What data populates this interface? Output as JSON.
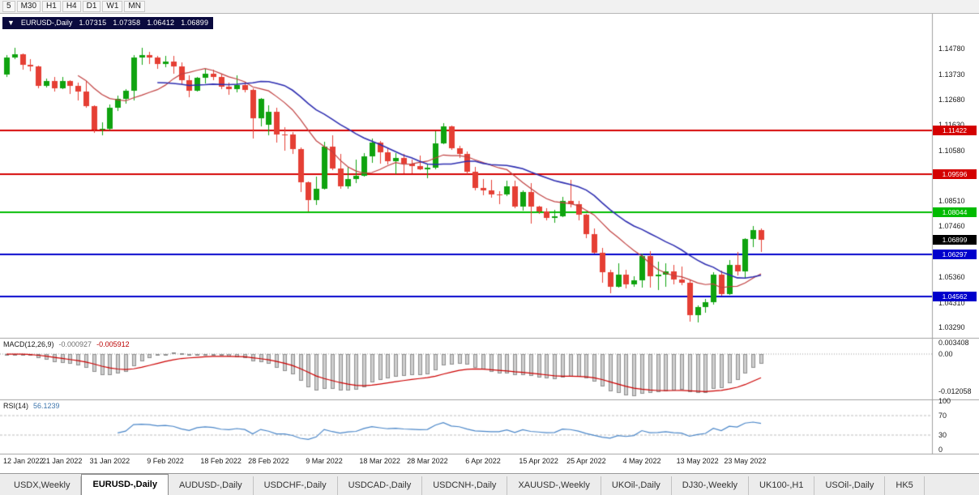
{
  "toolbar": {
    "timeframes": [
      "5",
      "M30",
      "H1",
      "H4",
      "D1",
      "W1",
      "MN"
    ]
  },
  "header": {
    "collapse_icon": "▼",
    "symbol": "EURUSD-,Daily",
    "open": "1.07315",
    "high": "1.07358",
    "low": "1.06412",
    "close": "1.06899"
  },
  "price_axis": {
    "labels": [
      "1.14780",
      "1.13730",
      "1.12680",
      "1.11630",
      "1.10580",
      "1.08510",
      "1.07460",
      "1.05360",
      "1.04310",
      "1.03290"
    ]
  },
  "levels": [
    {
      "value": 1.11422,
      "label": "1.11422",
      "color": "#d40000"
    },
    {
      "value": 1.09596,
      "label": "1.09596",
      "color": "#d40000"
    },
    {
      "value": 1.08044,
      "label": "1.08044",
      "color": "#00bb00"
    },
    {
      "value": 1.06297,
      "label": "1.06297",
      "color": "#0000cc"
    },
    {
      "value": 1.04562,
      "label": "1.04562",
      "color": "#0000cc"
    }
  ],
  "current_price": {
    "value": 1.06899,
    "label": "1.06899",
    "color": "#000000"
  },
  "macd": {
    "label": "MACD(12,26,9)",
    "main_value": "-0.000927",
    "signal_value": "-0.005912",
    "axis_max_label": "0.003408",
    "axis_zero_label": "0.00",
    "axis_min_label": "-0.012058",
    "axis_max": 0.003408,
    "axis_min": -0.012058
  },
  "rsi": {
    "label": "RSI(14)",
    "value": "56.1239",
    "axis_labels": [
      100,
      70,
      30,
      0
    ],
    "guide_levels": [
      70,
      30
    ]
  },
  "xaxis": {
    "labels": [
      "12 Jan 2022",
      "21 Jan 2022",
      "31 Jan 2022",
      "9 Feb 2022",
      "18 Feb 2022",
      "28 Feb 2022",
      "9 Mar 2022",
      "18 Mar 2022",
      "28 Mar 2022",
      "6 Apr 2022",
      "15 Apr 2022",
      "25 Apr 2022",
      "4 May 2022",
      "13 May 2022",
      "23 May 2022"
    ]
  },
  "tabs": [
    {
      "label": "USDX,Weekly",
      "active": false
    },
    {
      "label": "EURUSD-,Daily",
      "active": true
    },
    {
      "label": "AUDUSD-,Daily",
      "active": false
    },
    {
      "label": "USDCHF-,Daily",
      "active": false
    },
    {
      "label": "USDCAD-,Daily",
      "active": false
    },
    {
      "label": "USDCNH-,Daily",
      "active": false
    },
    {
      "label": "XAUUSD-,Weekly",
      "active": false
    },
    {
      "label": "UKOil-,Daily",
      "active": false
    },
    {
      "label": "DJ30-,Weekly",
      "active": false
    },
    {
      "label": "UK100-,H1",
      "active": false
    },
    {
      "label": "USOil-,Daily",
      "active": false
    },
    {
      "label": "HK5",
      "active": false
    }
  ],
  "colors": {
    "bull": "#0fa30f",
    "bear": "#e53f34",
    "ma_fast": "#c04040",
    "ma_slow": "#2d2db0",
    "macd_hist_fill": "#cfcfcf",
    "macd_hist_stroke": "#8e8e8e",
    "macd_signal": "#cc0000",
    "macd_zero": "#999999",
    "rsi_line": "#4a86c8",
    "rsi_guide": "#bdbdbd",
    "separator": "#a0a0a0"
  },
  "chart_data": {
    "type": "candlestick",
    "symbol": "EURUSD-",
    "timeframe": "Daily",
    "columns": [
      "date",
      "open",
      "high",
      "low",
      "close"
    ],
    "candles": [
      [
        "12 Jan 2022",
        1.137,
        1.1453,
        1.136,
        1.1443
      ],
      [
        "13 Jan 2022",
        1.1443,
        1.1483,
        1.1435,
        1.1455
      ],
      [
        "14 Jan 2022",
        1.1455,
        1.146,
        1.1392,
        1.1411
      ],
      [
        "17 Jan 2022",
        1.1411,
        1.1435,
        1.1385,
        1.1404
      ],
      [
        "18 Jan 2022",
        1.1404,
        1.1409,
        1.1314,
        1.1326
      ],
      [
        "19 Jan 2022",
        1.1326,
        1.1355,
        1.1318,
        1.1344
      ],
      [
        "20 Jan 2022",
        1.1344,
        1.136,
        1.13,
        1.1316
      ],
      [
        "21 Jan 2022",
        1.1316,
        1.136,
        1.1312,
        1.1345
      ],
      [
        "24 Jan 2022",
        1.1345,
        1.1349,
        1.129,
        1.1325
      ],
      [
        "25 Jan 2022",
        1.1325,
        1.1337,
        1.1264,
        1.1301
      ],
      [
        "26 Jan 2022",
        1.1301,
        1.1344,
        1.1235,
        1.124
      ],
      [
        "27 Jan 2022",
        1.124,
        1.1245,
        1.1131,
        1.1145
      ],
      [
        "28 Jan 2022",
        1.1145,
        1.1175,
        1.1121,
        1.1148
      ],
      [
        "31 Jan 2022",
        1.1148,
        1.1248,
        1.1141,
        1.1235
      ],
      [
        "1 Feb 2022",
        1.1235,
        1.1283,
        1.1222,
        1.1272
      ],
      [
        "2 Feb 2022",
        1.1272,
        1.131,
        1.1251,
        1.1304
      ],
      [
        "3 Feb 2022",
        1.1304,
        1.1452,
        1.1266,
        1.144
      ],
      [
        "4 Feb 2022",
        1.144,
        1.1483,
        1.1411,
        1.1451
      ],
      [
        "7 Feb 2022",
        1.1451,
        1.1465,
        1.1415,
        1.1443
      ],
      [
        "8 Feb 2022",
        1.1443,
        1.1449,
        1.1396,
        1.1414
      ],
      [
        "9 Feb 2022",
        1.1414,
        1.1448,
        1.1403,
        1.1424
      ],
      [
        "10 Feb 2022",
        1.1424,
        1.1449,
        1.1375,
        1.1404
      ],
      [
        "11 Feb 2022",
        1.1404,
        1.142,
        1.133,
        1.1347
      ],
      [
        "14 Feb 2022",
        1.1347,
        1.1369,
        1.1278,
        1.1305
      ],
      [
        "15 Feb 2022",
        1.1305,
        1.1362,
        1.1301,
        1.1358
      ],
      [
        "16 Feb 2022",
        1.1358,
        1.1395,
        1.1336,
        1.1374
      ],
      [
        "17 Feb 2022",
        1.1374,
        1.1392,
        1.1349,
        1.1361
      ],
      [
        "18 Feb 2022",
        1.1361,
        1.137,
        1.1312,
        1.1321
      ],
      [
        "21 Feb 2022",
        1.1321,
        1.1339,
        1.1288,
        1.1311
      ],
      [
        "22 Feb 2022",
        1.1311,
        1.1368,
        1.1297,
        1.1328
      ],
      [
        "23 Feb 2022",
        1.1328,
        1.1342,
        1.1297,
        1.1308
      ],
      [
        "24 Feb 2022",
        1.1308,
        1.1316,
        1.1106,
        1.1192
      ],
      [
        "25 Feb 2022",
        1.1192,
        1.1274,
        1.1158,
        1.127
      ],
      [
        "28 Feb 2022",
        1.1165,
        1.1246,
        1.1122,
        1.1219
      ],
      [
        "1 Mar 2022",
        1.1219,
        1.1234,
        1.109,
        1.1125
      ],
      [
        "2 Mar 2022",
        1.1125,
        1.1155,
        1.1058,
        1.1124
      ],
      [
        "3 Mar 2022",
        1.1124,
        1.1134,
        1.1045,
        1.1065
      ],
      [
        "4 Mar 2022",
        1.1065,
        1.107,
        1.0886,
        1.0926
      ],
      [
        "7 Mar 2022",
        1.0926,
        1.0932,
        1.0806,
        1.0855
      ],
      [
        "8 Mar 2022",
        1.0855,
        1.095,
        1.0834,
        1.0901
      ],
      [
        "9 Mar 2022",
        1.0901,
        1.1095,
        1.0896,
        1.1075
      ],
      [
        "10 Mar 2022",
        1.1075,
        1.1121,
        1.0976,
        1.0985
      ],
      [
        "11 Mar 2022",
        1.0985,
        1.1043,
        1.0901,
        1.091
      ],
      [
        "14 Mar 2022",
        1.091,
        1.0992,
        1.0902,
        1.0941
      ],
      [
        "15 Mar 2022",
        1.0941,
        1.102,
        1.0925,
        1.0955
      ],
      [
        "16 Mar 2022",
        1.0955,
        1.1047,
        1.095,
        1.1035
      ],
      [
        "17 Mar 2022",
        1.1035,
        1.1108,
        1.1009,
        1.1091
      ],
      [
        "18 Mar 2022",
        1.1091,
        1.1098,
        1.1003,
        1.1051
      ],
      [
        "21 Mar 2022",
        1.1051,
        1.1069,
        1.1,
        1.1015
      ],
      [
        "22 Mar 2022",
        1.1015,
        1.1046,
        1.0962,
        1.1028
      ],
      [
        "23 Mar 2022",
        1.1028,
        1.1044,
        1.0963,
        1.1005
      ],
      [
        "24 Mar 2022",
        1.1005,
        1.1021,
        1.0965,
        1.0995
      ],
      [
        "25 Mar 2022",
        1.0995,
        1.1039,
        1.0979,
        1.0982
      ],
      [
        "28 Mar 2022",
        1.0982,
        1.1,
        1.0944,
        1.0986
      ],
      [
        "29 Mar 2022",
        1.0986,
        1.1137,
        1.098,
        1.1087
      ],
      [
        "30 Mar 2022",
        1.1087,
        1.1171,
        1.1084,
        1.1158
      ],
      [
        "31 Mar 2022",
        1.1158,
        1.1161,
        1.106,
        1.1067
      ],
      [
        "1 Apr 2022",
        1.1067,
        1.1076,
        1.1027,
        1.1045
      ],
      [
        "4 Apr 2022",
        1.1045,
        1.1055,
        1.096,
        1.097
      ],
      [
        "5 Apr 2022",
        1.097,
        1.099,
        1.0895,
        1.0905
      ],
      [
        "6 Apr 2022",
        1.0905,
        1.0939,
        1.0874,
        1.0895
      ],
      [
        "7 Apr 2022",
        1.0895,
        1.0938,
        1.0864,
        1.0878
      ],
      [
        "8 Apr 2022",
        1.0878,
        1.0891,
        1.0837,
        1.0876
      ],
      [
        "11 Apr 2022",
        1.0876,
        1.0933,
        1.0872,
        1.0912
      ],
      [
        "12 Apr 2022",
        1.0912,
        1.0933,
        1.0821,
        1.0827
      ],
      [
        "13 Apr 2022",
        1.0827,
        1.0895,
        1.0809,
        1.0887
      ],
      [
        "14 Apr 2022",
        1.0887,
        1.0923,
        1.0757,
        1.0828
      ],
      [
        "15 Apr 2022",
        1.0828,
        1.0832,
        1.0798,
        1.0807
      ],
      [
        "18 Apr 2022",
        1.0807,
        1.0821,
        1.0769,
        1.0781
      ],
      [
        "19 Apr 2022",
        1.0781,
        1.0815,
        1.0761,
        1.0786
      ],
      [
        "20 Apr 2022",
        1.0786,
        1.0868,
        1.0782,
        1.085
      ],
      [
        "21 Apr 2022",
        1.085,
        1.0937,
        1.0824,
        1.0838
      ],
      [
        "22 Apr 2022",
        1.0838,
        1.0852,
        1.077,
        1.0795
      ],
      [
        "25 Apr 2022",
        1.0795,
        1.0797,
        1.0697,
        1.0713
      ],
      [
        "26 Apr 2022",
        1.0713,
        1.0738,
        1.0635,
        1.0637
      ],
      [
        "27 Apr 2022",
        1.0637,
        1.0656,
        1.0514,
        1.0556
      ],
      [
        "28 Apr 2022",
        1.0556,
        1.0567,
        1.047,
        1.0498
      ],
      [
        "29 Apr 2022",
        1.0498,
        1.0593,
        1.0492,
        1.0545
      ],
      [
        "2 May 2022",
        1.0545,
        1.0568,
        1.049,
        1.0505
      ],
      [
        "3 May 2022",
        1.0505,
        1.054,
        1.0495,
        1.0522
      ],
      [
        "4 May 2022",
        1.0522,
        1.0632,
        1.0494,
        1.0622
      ],
      [
        "5 May 2022",
        1.0622,
        1.0642,
        1.0492,
        1.054
      ],
      [
        "6 May 2022",
        1.054,
        1.0599,
        1.0483,
        1.0545
      ],
      [
        "9 May 2022",
        1.0545,
        1.0593,
        1.0495,
        1.056
      ],
      [
        "10 May 2022",
        1.056,
        1.0588,
        1.0507,
        1.0528
      ],
      [
        "11 May 2022",
        1.0528,
        1.0579,
        1.0502,
        1.0513
      ],
      [
        "12 May 2022",
        1.0513,
        1.0527,
        1.0354,
        1.038
      ],
      [
        "13 May 2022",
        1.038,
        1.042,
        1.0348,
        1.0412
      ],
      [
        "16 May 2022",
        1.0412,
        1.0445,
        1.0389,
        1.0434
      ],
      [
        "17 May 2022",
        1.0434,
        1.0557,
        1.0422,
        1.0548
      ],
      [
        "18 May 2022",
        1.0548,
        1.0564,
        1.0459,
        1.0465
      ],
      [
        "19 May 2022",
        1.0465,
        1.0607,
        1.0462,
        1.0588
      ],
      [
        "20 May 2022",
        1.0588,
        1.064,
        1.0543,
        1.056
      ],
      [
        "23 May 2022",
        1.056,
        1.0697,
        1.0532,
        1.0693
      ],
      [
        "24 May 2022",
        1.0693,
        1.0748,
        1.0661,
        1.073
      ],
      [
        "25 May 2022",
        1.0731,
        1.0736,
        1.0641,
        1.069
      ]
    ]
  }
}
